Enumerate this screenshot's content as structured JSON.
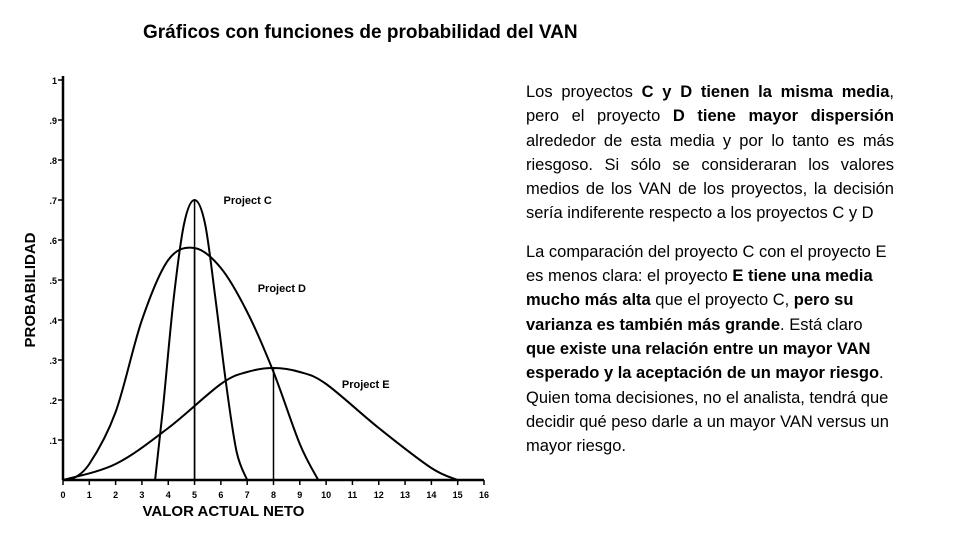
{
  "page": {
    "title": "Gráficos con funciones de probabilidad del VAN"
  },
  "chart_data": {
    "type": "line",
    "xlabel": "VALOR ACTUAL NETO",
    "ylabel": "PROBABILIDAD",
    "xlim": [
      0,
      16
    ],
    "ylim": [
      0,
      1
    ],
    "x_ticks": [
      "0",
      "1",
      "2",
      "3",
      "4",
      "5",
      "6",
      "7",
      "8",
      "9",
      "10",
      "11",
      "12",
      "13",
      "14",
      "15",
      "16"
    ],
    "y_ticks": [
      ".1",
      ".2",
      ".3",
      ".4",
      ".5",
      ".6",
      ".7",
      ".8",
      ".9",
      "1"
    ],
    "grid": false,
    "series": [
      {
        "name": "Project C",
        "x": [
          3.5,
          3.8,
          4.2,
          4.6,
          5.0,
          5.4,
          5.8,
          6.2,
          6.6,
          7.0
        ],
        "values": [
          0.0,
          0.18,
          0.45,
          0.64,
          0.7,
          0.64,
          0.45,
          0.24,
          0.07,
          0.0
        ]
      },
      {
        "name": "Project D",
        "x": [
          0.3,
          1.0,
          2.0,
          3.0,
          4.0,
          5.0,
          6.0,
          7.0,
          8.0,
          9.0,
          9.7
        ],
        "values": [
          0.0,
          0.04,
          0.17,
          0.4,
          0.55,
          0.58,
          0.53,
          0.42,
          0.27,
          0.09,
          0.0
        ]
      },
      {
        "name": "Project E",
        "x": [
          0.0,
          2.0,
          4.0,
          6.0,
          7.0,
          8.0,
          9.0,
          10.0,
          12.0,
          14.0,
          15.0
        ],
        "values": [
          0.0,
          0.04,
          0.13,
          0.24,
          0.27,
          0.28,
          0.27,
          0.24,
          0.13,
          0.03,
          0.0
        ]
      }
    ],
    "annotations": [
      {
        "text": "Project C",
        "series": "Project C"
      },
      {
        "text": "Project D",
        "series": "Project D"
      },
      {
        "text": "Project E",
        "series": "Project E"
      }
    ]
  },
  "text": {
    "p1": [
      {
        "t": "Los proyectos ",
        "b": false
      },
      {
        "t": "C y D tienen la misma media",
        "b": true
      },
      {
        "t": ", pero el proyecto ",
        "b": false
      },
      {
        "t": "D tiene mayor dispersión",
        "b": true
      },
      {
        "t": " alrededor de esta media y por lo tanto es más riesgoso. Si sólo se consideraran los valores medios de los VAN de los proyectos, la decisión sería indiferente respecto a los proyectos C y D",
        "b": false
      }
    ],
    "p2": [
      {
        "t": "La comparación del proyecto C con el proyecto E es menos clara: el proyecto ",
        "b": false
      },
      {
        "t": "E tiene una media mucho más alta",
        "b": true
      },
      {
        "t": " que el proyecto C, ",
        "b": false
      },
      {
        "t": "pero su varianza es también más grande",
        "b": true
      },
      {
        "t": ". Está claro ",
        "b": false
      },
      {
        "t": "que existe una relación entre un mayor VAN esperado y la aceptación de un mayor riesgo",
        "b": true
      },
      {
        "t": ". Quien toma decisiones, no el analista, tendrá que decidir qué peso darle a un mayor VAN versus un mayor riesgo.",
        "b": false
      }
    ]
  }
}
